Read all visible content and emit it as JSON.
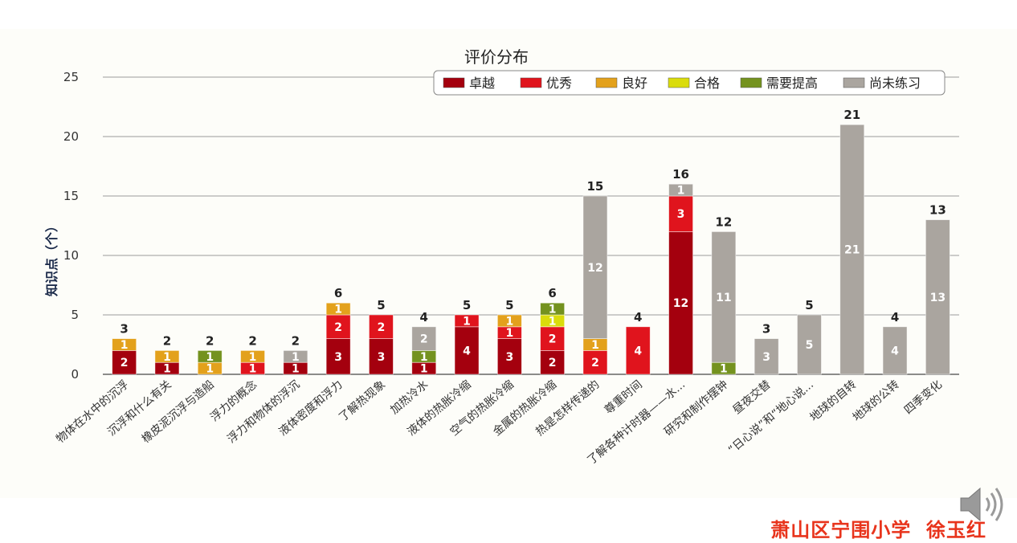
{
  "chart_data": {
    "type": "bar",
    "stacked": true,
    "title": "评价分布",
    "xlabel": "",
    "ylabel": "知识点（个）",
    "ylim": [
      0,
      25
    ],
    "yticks": [
      "0",
      "5",
      "10",
      "15",
      "20",
      "25"
    ],
    "grid": true,
    "legend_position": "top-right",
    "categories": [
      "物体在水中的沉浮",
      "沉浮和什么有关",
      "橡皮泥沉浮与造船",
      "浮力的概念",
      "浮力和物体的浮沉",
      "液体密度和浮力",
      "了解热现象",
      "加热冷水",
      "液体的热胀冷缩",
      "空气的热胀冷缩",
      "金属的热胀冷缩",
      "热是怎样传递的",
      "尊重时间",
      "了解各种计时器——水...",
      "研究和制作摆钟",
      "昼夜交替",
      "“日心说”和“地心说...",
      "地球的自转",
      "地球的公转",
      "四季变化"
    ],
    "series": [
      {
        "name": "卓越",
        "color": "#a4000e",
        "values": [
          2,
          1,
          0,
          0,
          1,
          3,
          3,
          1,
          4,
          3,
          2,
          0,
          0,
          12,
          0,
          0,
          0,
          0,
          0,
          0
        ]
      },
      {
        "name": "优秀",
        "color": "#e0141d",
        "values": [
          0,
          0,
          0,
          1,
          0,
          2,
          2,
          0,
          1,
          1,
          2,
          2,
          4,
          3,
          0,
          0,
          0,
          0,
          0,
          0
        ]
      },
      {
        "name": "良好",
        "color": "#e3a11c",
        "values": [
          1,
          1,
          1,
          1,
          0,
          1,
          0,
          0,
          0,
          1,
          0,
          1,
          0,
          0,
          0,
          0,
          0,
          0,
          0,
          0
        ]
      },
      {
        "name": "合格",
        "color": "#dadc0c",
        "values": [
          0,
          0,
          0,
          0,
          0,
          0,
          0,
          0,
          0,
          0,
          1,
          0,
          0,
          0,
          0,
          0,
          0,
          0,
          0,
          0
        ]
      },
      {
        "name": "需要提高",
        "color": "#74921f",
        "values": [
          0,
          0,
          1,
          0,
          0,
          0,
          0,
          1,
          0,
          0,
          1,
          0,
          0,
          0,
          1,
          0,
          0,
          0,
          0,
          0
        ]
      },
      {
        "name": "尚未练习",
        "color": "#aaa59f",
        "values": [
          0,
          0,
          0,
          0,
          1,
          0,
          0,
          2,
          0,
          0,
          0,
          12,
          0,
          1,
          11,
          3,
          5,
          21,
          4,
          13
        ]
      }
    ],
    "totals": [
      3,
      2,
      2,
      2,
      2,
      6,
      5,
      4,
      5,
      5,
      6,
      15,
      4,
      16,
      12,
      3,
      5,
      21,
      4,
      13
    ]
  },
  "footer": {
    "credit": "萧山区宁围小学  徐玉红"
  },
  "icons": {
    "speaker": "speaker-icon"
  }
}
